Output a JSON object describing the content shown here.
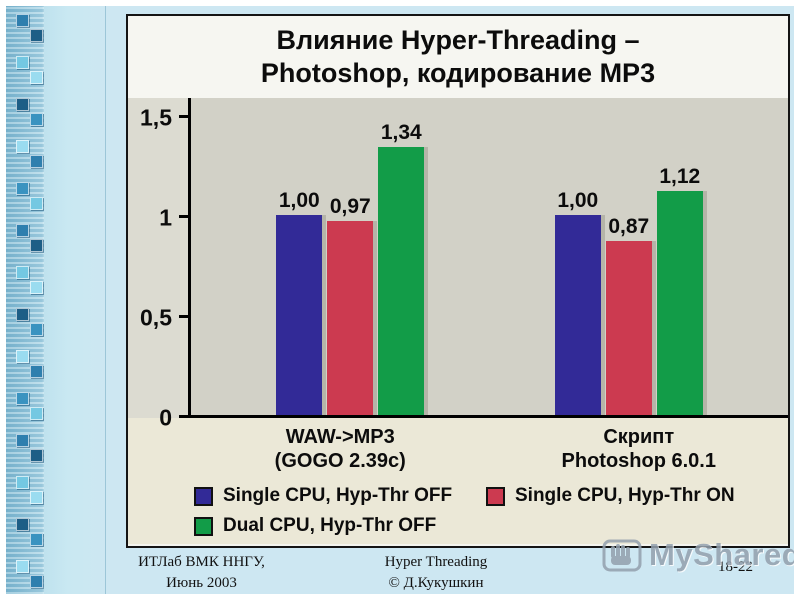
{
  "chart_data": {
    "type": "bar",
    "title": "Влияние Hyper-Threading – Photoshop, кодирование MP3",
    "title_lines": [
      "Влияние Hyper-Threading –",
      "Photoshop, кодирование MP3"
    ],
    "categories": [
      "WAW->MP3 (GOGO 2.39c)",
      "Скрипт Photoshop 6.0.1"
    ],
    "category_lines": [
      [
        "WAW->MP3",
        "(GOGO 2.39c)"
      ],
      [
        "Скрипт",
        "Photoshop 6.0.1"
      ]
    ],
    "series": [
      {
        "name": "Single CPU, Hyp-Thr OFF",
        "color": "#322a97",
        "values": [
          1.0,
          1.0
        ],
        "labels": [
          "1,00",
          "1,00"
        ]
      },
      {
        "name": "Single CPU, Hyp-Thr ON",
        "color": "#cc3a50",
        "values": [
          0.97,
          0.87
        ],
        "labels": [
          "0,97",
          "0,87"
        ]
      },
      {
        "name": "Dual CPU, Hyp-Thr OFF",
        "color": "#129c48",
        "values": [
          1.34,
          1.12
        ],
        "labels": [
          "1,34",
          "1,12"
        ]
      }
    ],
    "ylim": [
      0,
      1.5
    ],
    "yticks": [
      {
        "label": "1,5",
        "value": 1.5
      },
      {
        "label": "1",
        "value": 1
      },
      {
        "label": "0,5",
        "value": 0.5
      },
      {
        "label": "0",
        "value": 0
      }
    ],
    "grid": false,
    "legend_position": "bottom",
    "plot_bg": "#d2d1c7",
    "band_bg": "#ebe8d7"
  },
  "footer": {
    "left_line1": "ИТЛаб ВМК ННГУ,",
    "left_line2": "Июнь 2003",
    "center_line1": "Hyper Threading",
    "center_line2": "© Д.Кукушкин",
    "page": "18-22"
  },
  "watermark": {
    "text": "MyShared"
  }
}
